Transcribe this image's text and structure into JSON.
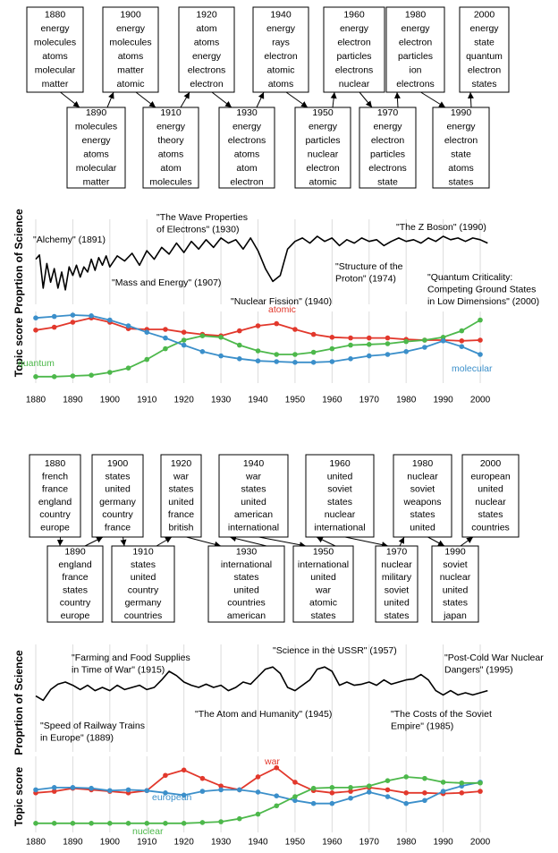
{
  "topic_panels": [
    {
      "topics": [
        {
          "label": "1880",
          "words": [
            "energy",
            "molecules",
            "atoms",
            "molecular",
            "matter"
          ]
        },
        {
          "label": "1890",
          "words": [
            "molecules",
            "energy",
            "atoms",
            "molecular",
            "matter"
          ]
        },
        {
          "label": "1900",
          "words": [
            "energy",
            "molecules",
            "atoms",
            "matter",
            "atomic"
          ]
        },
        {
          "label": "1910",
          "words": [
            "energy",
            "theory",
            "atoms",
            "atom",
            "molecules"
          ]
        },
        {
          "label": "1920",
          "words": [
            "atom",
            "atoms",
            "energy",
            "electrons",
            "electron"
          ]
        },
        {
          "label": "1930",
          "words": [
            "energy",
            "electrons",
            "atoms",
            "atom",
            "electron"
          ]
        },
        {
          "label": "1940",
          "words": [
            "energy",
            "rays",
            "electron",
            "atomic",
            "atoms"
          ]
        },
        {
          "label": "1950",
          "words": [
            "energy",
            "particles",
            "nuclear",
            "electron",
            "atomic"
          ]
        },
        {
          "label": "1960",
          "words": [
            "energy",
            "electron",
            "particles",
            "electrons",
            "nuclear"
          ]
        },
        {
          "label": "1970",
          "words": [
            "energy",
            "electron",
            "particles",
            "electrons",
            "state"
          ]
        },
        {
          "label": "1980",
          "words": [
            "energy",
            "electron",
            "particles",
            "ion",
            "electrons"
          ]
        },
        {
          "label": "1990",
          "words": [
            "energy",
            "electron",
            "state",
            "atoms",
            "states"
          ]
        },
        {
          "label": "2000",
          "words": [
            "energy",
            "state",
            "quantum",
            "electron",
            "states"
          ]
        }
      ]
    },
    {
      "topics": [
        {
          "label": "1880",
          "words": [
            "french",
            "france",
            "england",
            "country",
            "europe"
          ]
        },
        {
          "label": "1890",
          "words": [
            "england",
            "france",
            "states",
            "country",
            "europe"
          ]
        },
        {
          "label": "1900",
          "words": [
            "states",
            "united",
            "germany",
            "country",
            "france"
          ]
        },
        {
          "label": "1910",
          "words": [
            "states",
            "united",
            "country",
            "germany",
            "countries"
          ]
        },
        {
          "label": "1920",
          "words": [
            "war",
            "states",
            "united",
            "france",
            "british"
          ]
        },
        {
          "label": "1930",
          "words": [
            "international",
            "states",
            "united",
            "countries",
            "american"
          ]
        },
        {
          "label": "1940",
          "words": [
            "war",
            "states",
            "united",
            "american",
            "international"
          ]
        },
        {
          "label": "1950",
          "words": [
            "international",
            "united",
            "war",
            "atomic",
            "states"
          ]
        },
        {
          "label": "1960",
          "words": [
            "united",
            "soviet",
            "states",
            "nuclear",
            "international"
          ]
        },
        {
          "label": "1970",
          "words": [
            "nuclear",
            "military",
            "soviet",
            "united",
            "states"
          ]
        },
        {
          "label": "1980",
          "words": [
            "nuclear",
            "soviet",
            "weapons",
            "states",
            "united"
          ]
        },
        {
          "label": "1990",
          "words": [
            "soviet",
            "nuclear",
            "united",
            "states",
            "japan"
          ]
        },
        {
          "label": "2000",
          "words": [
            "european",
            "united",
            "nuclear",
            "states",
            "countries"
          ]
        }
      ]
    }
  ],
  "chart_data": [
    {
      "type": "line",
      "ylabel": "Proprtion of Science",
      "color": "#000000",
      "xlim": [
        1878,
        2004
      ],
      "ylim": [
        0,
        1
      ],
      "x": [
        1880,
        1881,
        1882,
        1883,
        1884,
        1885,
        1886,
        1887,
        1888,
        1889,
        1890,
        1891,
        1892,
        1893,
        1894,
        1895,
        1896,
        1897,
        1898,
        1899,
        1900,
        1902,
        1904,
        1906,
        1908,
        1910,
        1912,
        1914,
        1916,
        1918,
        1920,
        1922,
        1924,
        1926,
        1928,
        1930,
        1932,
        1934,
        1936,
        1938,
        1940,
        1942,
        1944,
        1946,
        1948,
        1950,
        1952,
        1954,
        1956,
        1958,
        1960,
        1962,
        1964,
        1966,
        1968,
        1970,
        1972,
        1974,
        1976,
        1978,
        1980,
        1982,
        1984,
        1986,
        1988,
        1990,
        1992,
        1994,
        1996,
        1998,
        2000,
        2002
      ],
      "values": [
        0.53,
        0.58,
        0.19,
        0.48,
        0.26,
        0.42,
        0.19,
        0.38,
        0.17,
        0.44,
        0.34,
        0.46,
        0.32,
        0.44,
        0.38,
        0.53,
        0.4,
        0.55,
        0.46,
        0.57,
        0.44,
        0.57,
        0.51,
        0.6,
        0.46,
        0.63,
        0.53,
        0.67,
        0.59,
        0.72,
        0.61,
        0.74,
        0.65,
        0.76,
        0.67,
        0.78,
        0.72,
        0.76,
        0.65,
        0.78,
        0.63,
        0.42,
        0.27,
        0.34,
        0.65,
        0.74,
        0.78,
        0.72,
        0.8,
        0.74,
        0.78,
        0.69,
        0.76,
        0.72,
        0.78,
        0.74,
        0.76,
        0.69,
        0.74,
        0.78,
        0.74,
        0.76,
        0.72,
        0.78,
        0.74,
        0.8,
        0.76,
        0.78,
        0.74,
        0.78,
        0.76,
        0.72
      ],
      "annotations": [
        {
          "lines": [
            "\"Alchemy\"  (1891)"
          ]
        },
        {
          "lines": [
            "\"The Wave Properties",
            "of Electrons\"  (1930)"
          ]
        },
        {
          "lines": [
            "\"The Z Boson\"  (1990)"
          ]
        },
        {
          "lines": [
            "\"Structure of the",
            "Proton\"  (1974)"
          ]
        },
        {
          "lines": [
            "\"Quantum Criticality:",
            "Competing Ground States",
            "in Low Dimensions\"  (2000)"
          ]
        },
        {
          "lines": [
            "\"Mass and Energy\"  (1907)"
          ]
        },
        {
          "lines": [
            "\"Nuclear Fission\"  (1940)"
          ]
        }
      ]
    },
    {
      "type": "line",
      "ylabel": "Topic score",
      "xlim": [
        1878,
        2004
      ],
      "ylim": [
        0,
        1
      ],
      "grid": true,
      "markers": true,
      "xticks": [
        1880,
        1890,
        1900,
        1910,
        1920,
        1930,
        1940,
        1950,
        1960,
        1970,
        1980,
        1990,
        2000
      ],
      "x": [
        1880,
        1885,
        1890,
        1895,
        1900,
        1905,
        1910,
        1915,
        1920,
        1925,
        1930,
        1935,
        1940,
        1945,
        1950,
        1955,
        1960,
        1965,
        1970,
        1975,
        1980,
        1985,
        1990,
        1995,
        2000
      ],
      "series": [
        {
          "name": "atomic",
          "color": "#e2382c",
          "values": [
            0.74,
            0.78,
            0.85,
            0.91,
            0.85,
            0.76,
            0.75,
            0.75,
            0.71,
            0.68,
            0.66,
            0.73,
            0.8,
            0.83,
            0.75,
            0.68,
            0.64,
            0.63,
            0.63,
            0.63,
            0.61,
            0.6,
            0.6,
            0.59,
            0.6
          ]
        },
        {
          "name": "quantum",
          "color": "#4db84b",
          "values": [
            0.09,
            0.09,
            0.1,
            0.11,
            0.15,
            0.21,
            0.33,
            0.48,
            0.6,
            0.66,
            0.64,
            0.53,
            0.45,
            0.4,
            0.4,
            0.43,
            0.48,
            0.53,
            0.54,
            0.55,
            0.58,
            0.6,
            0.64,
            0.73,
            0.88
          ]
        },
        {
          "name": "molecular",
          "color": "#3b8fca",
          "values": [
            0.91,
            0.93,
            0.95,
            0.94,
            0.88,
            0.8,
            0.71,
            0.63,
            0.53,
            0.44,
            0.38,
            0.34,
            0.31,
            0.3,
            0.29,
            0.29,
            0.3,
            0.34,
            0.38,
            0.4,
            0.44,
            0.5,
            0.59,
            0.51,
            0.4
          ]
        }
      ]
    },
    {
      "type": "line",
      "ylabel": "Proprtion of Science",
      "color": "#000000",
      "xlim": [
        1878,
        2004
      ],
      "ylim": [
        0,
        1
      ],
      "x": [
        1880,
        1882,
        1884,
        1886,
        1888,
        1890,
        1892,
        1894,
        1896,
        1898,
        1900,
        1902,
        1904,
        1906,
        1908,
        1910,
        1912,
        1914,
        1916,
        1918,
        1920,
        1922,
        1924,
        1926,
        1928,
        1930,
        1932,
        1934,
        1936,
        1938,
        1940,
        1942,
        1944,
        1946,
        1948,
        1950,
        1952,
        1954,
        1956,
        1958,
        1960,
        1962,
        1964,
        1966,
        1968,
        1970,
        1972,
        1974,
        1976,
        1978,
        1980,
        1982,
        1984,
        1986,
        1988,
        1990,
        1992,
        1994,
        1996,
        1998,
        2000,
        2002
      ],
      "values": [
        0.52,
        0.48,
        0.58,
        0.63,
        0.65,
        0.62,
        0.58,
        0.62,
        0.57,
        0.6,
        0.57,
        0.62,
        0.58,
        0.6,
        0.62,
        0.58,
        0.6,
        0.67,
        0.75,
        0.71,
        0.65,
        0.62,
        0.6,
        0.63,
        0.6,
        0.62,
        0.57,
        0.6,
        0.65,
        0.63,
        0.7,
        0.77,
        0.79,
        0.73,
        0.6,
        0.57,
        0.62,
        0.67,
        0.77,
        0.79,
        0.75,
        0.62,
        0.65,
        0.62,
        0.63,
        0.65,
        0.62,
        0.67,
        0.63,
        0.65,
        0.67,
        0.68,
        0.72,
        0.67,
        0.57,
        0.53,
        0.57,
        0.53,
        0.55,
        0.53,
        0.55,
        0.57
      ],
      "annotations": [
        {
          "lines": [
            "\"Farming and Food Supplies",
            "in Time of War\"  (1915)"
          ]
        },
        {
          "lines": [
            "\"Science in the USSR\"  (1957)"
          ]
        },
        {
          "lines": [
            "\"Post-Cold War Nuclear",
            "Dangers\"  (1995)"
          ]
        },
        {
          "lines": [
            "\"Speed of Railway Trains",
            "in Europe\"  (1889)"
          ]
        },
        {
          "lines": [
            "\"The Atom and Humanity\"  (1945)"
          ]
        },
        {
          "lines": [
            "\"The Costs of the Soviet",
            "Empire\"  (1985)"
          ]
        }
      ]
    },
    {
      "type": "line",
      "ylabel": "Topic score",
      "xlim": [
        1878,
        2004
      ],
      "ylim": [
        0,
        1
      ],
      "grid": true,
      "markers": true,
      "xticks": [
        1880,
        1890,
        1900,
        1910,
        1920,
        1930,
        1940,
        1950,
        1960,
        1970,
        1980,
        1990,
        2000
      ],
      "x": [
        1880,
        1885,
        1890,
        1895,
        1900,
        1905,
        1910,
        1915,
        1920,
        1925,
        1930,
        1935,
        1940,
        1945,
        1950,
        1955,
        1960,
        1965,
        1970,
        1975,
        1980,
        1985,
        1990,
        1995,
        2000
      ],
      "series": [
        {
          "name": "war",
          "color": "#e2382c",
          "values": [
            0.52,
            0.54,
            0.58,
            0.56,
            0.54,
            0.52,
            0.55,
            0.75,
            0.82,
            0.71,
            0.61,
            0.56,
            0.73,
            0.85,
            0.66,
            0.55,
            0.52,
            0.54,
            0.59,
            0.56,
            0.52,
            0.52,
            0.51,
            0.52,
            0.54
          ]
        },
        {
          "name": "european",
          "color": "#3b8fca",
          "values": [
            0.56,
            0.59,
            0.59,
            0.58,
            0.55,
            0.56,
            0.55,
            0.52,
            0.49,
            0.54,
            0.56,
            0.56,
            0.53,
            0.48,
            0.42,
            0.38,
            0.38,
            0.45,
            0.53,
            0.47,
            0.38,
            0.42,
            0.54,
            0.61,
            0.66
          ]
        },
        {
          "name": "nuclear",
          "color": "#4db84b",
          "values": [
            0.12,
            0.12,
            0.12,
            0.12,
            0.12,
            0.12,
            0.12,
            0.12,
            0.12,
            0.13,
            0.14,
            0.18,
            0.24,
            0.35,
            0.47,
            0.58,
            0.59,
            0.59,
            0.61,
            0.68,
            0.73,
            0.71,
            0.66,
            0.65,
            0.65
          ]
        }
      ]
    }
  ]
}
